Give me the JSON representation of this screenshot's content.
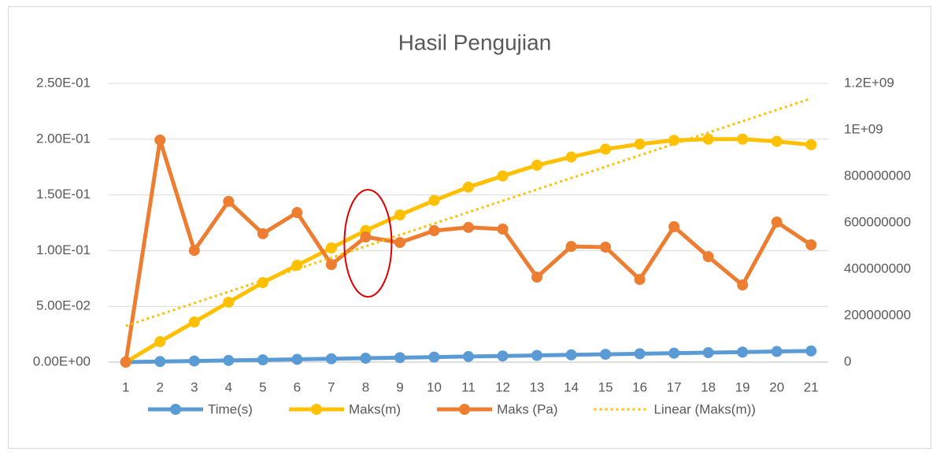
{
  "chart_data": {
    "type": "line",
    "title": "Hasil Pengujian",
    "categories": [
      "1",
      "2",
      "3",
      "4",
      "5",
      "6",
      "7",
      "8",
      "9",
      "10",
      "11",
      "12",
      "13",
      "14",
      "15",
      "16",
      "17",
      "18",
      "19",
      "20",
      "21"
    ],
    "series": [
      {
        "name": "Time(s)",
        "color": "#5b9bd5",
        "marker": true,
        "line_style": "solid",
        "values": [
          0,
          0.0005,
          0.001,
          0.0015,
          0.002,
          0.0025,
          0.003,
          0.0035,
          0.004,
          0.0045,
          0.005,
          0.0055,
          0.006,
          0.0065,
          0.007,
          0.0075,
          0.008,
          0.0085,
          0.009,
          0.0095,
          0.01
        ]
      },
      {
        "name": "Maks(m)",
        "color": "#ffc000",
        "marker": true,
        "line_style": "solid",
        "values": [
          0,
          0.0184,
          0.036,
          0.0537,
          0.0713,
          0.0869,
          0.1024,
          0.118,
          0.132,
          0.145,
          0.157,
          0.167,
          0.1766,
          0.184,
          0.191,
          0.1956,
          0.199,
          0.2,
          0.2,
          0.198,
          0.195
        ]
      },
      {
        "name": "Maks (Pa)",
        "color": "#ed7d31",
        "marker": true,
        "line_style": "solid",
        "axis": "y2",
        "values": [
          0,
          956000000,
          481000000,
          692000000,
          553000000,
          644000000,
          420000000,
          539000000,
          515000000,
          566000000,
          580000000,
          573000000,
          366000000,
          498000000,
          495000000,
          356000000,
          583000000,
          454000000,
          332000000,
          603000000,
          505000000
        ]
      },
      {
        "name": "Linear (Maks(m))",
        "color": "#ffc000",
        "marker": false,
        "line_style": "dotted",
        "values": [
          0.0325,
          0.0427,
          0.0529,
          0.0631,
          0.0733,
          0.0835,
          0.0937,
          0.1039,
          0.1141,
          0.1243,
          0.1345,
          0.1447,
          0.1549,
          0.1651,
          0.1753,
          0.1855,
          0.1957,
          0.2059,
          0.2161,
          0.2263,
          0.2365
        ]
      }
    ],
    "ylim": [
      0,
      0.25
    ],
    "yticks": [
      {
        "value": 0,
        "label": "0.00E+00"
      },
      {
        "value": 0.05,
        "label": "5.00E-02"
      },
      {
        "value": 0.1,
        "label": "1.00E-01"
      },
      {
        "value": 0.15,
        "label": "1.50E-01"
      },
      {
        "value": 0.2,
        "label": "2.00E-01"
      },
      {
        "value": 0.25,
        "label": "2.50E-01"
      }
    ],
    "y2lim": [
      0,
      1200000000
    ],
    "y2ticks": [
      0,
      200000000,
      400000000,
      600000000,
      800000000,
      {
        "value": 1000000000,
        "label": "1E+09"
      },
      {
        "value": 1200000000,
        "label": "1.2E+09"
      }
    ],
    "grid": true,
    "legend": "bottom"
  }
}
